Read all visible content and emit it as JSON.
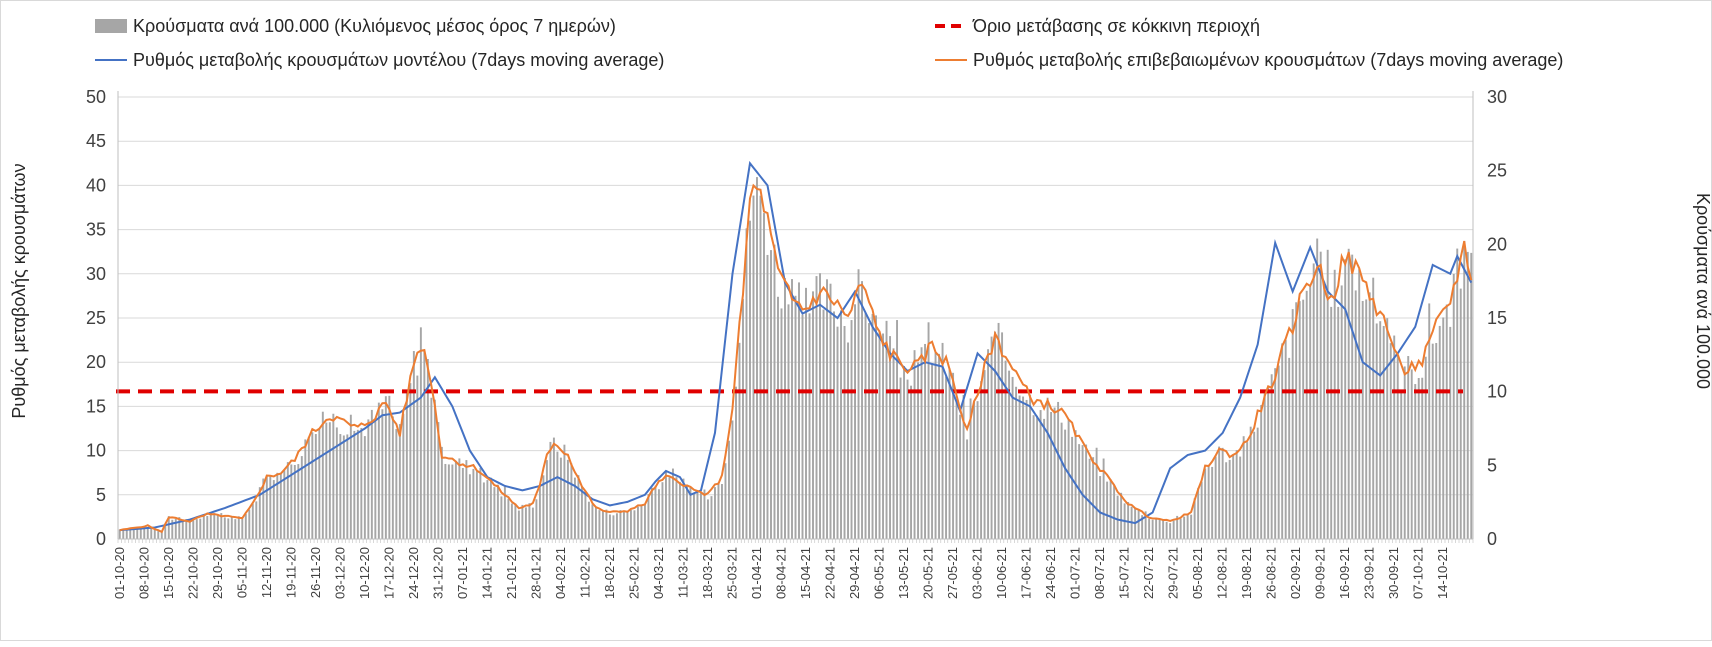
{
  "chart_data": {
    "type": "bar+line",
    "legend": {
      "bars": "Κρούσματα ανά 100.000 (Κυλιόμενος μέσος όρος 7 ημερών)",
      "threshold": "Όριο μετάβασης σε κόκκινη περιοχή",
      "model_line": "Ρυθμός μεταβολής κρουσμάτων μοντέλου (7days moving average)",
      "confirmed_line": "Ρυθμός μεταβολής επιβεβαιωμένων κρουσμάτων (7days moving average)"
    },
    "y_left": {
      "label": "Ρυθμός μεταβολής κρουσμάτων",
      "min": 0,
      "max": 50,
      "step": 5,
      "ticks": [
        "0",
        "5",
        "10",
        "15",
        "20",
        "25",
        "30",
        "35",
        "40",
        "45",
        "50"
      ]
    },
    "y_right": {
      "label": "Κρούσματα ανά 100.000",
      "min": 0,
      "max": 30,
      "step": 5,
      "ticks": [
        "0",
        "5",
        "10",
        "15",
        "20",
        "25",
        "30"
      ]
    },
    "x_start": "2020-10-01",
    "x_days": 387,
    "x_ticks": [
      "01-10-20",
      "08-10-20",
      "15-10-20",
      "22-10-20",
      "29-10-20",
      "05-11-20",
      "12-11-20",
      "19-11-20",
      "26-11-20",
      "03-12-20",
      "10-12-20",
      "17-12-20",
      "24-12-20",
      "31-12-20",
      "07-01-21",
      "14-01-21",
      "21-01-21",
      "28-01-21",
      "04-02-21",
      "11-02-21",
      "18-02-21",
      "25-02-21",
      "04-03-21",
      "11-03-21",
      "18-03-21",
      "25-03-21",
      "01-04-21",
      "08-04-21",
      "15-04-21",
      "22-04-21",
      "29-04-21",
      "06-05-21",
      "13-05-21",
      "20-05-21",
      "27-05-21",
      "03-06-21",
      "10-06-21",
      "17-06-21",
      "24-06-21",
      "01-07-21",
      "08-07-21",
      "15-07-21",
      "22-07-21",
      "29-07-21",
      "05-08-21",
      "12-08-21",
      "19-08-21",
      "26-08-21",
      "02-09-21",
      "09-09-21",
      "16-09-21",
      "23-09-21",
      "30-09-21",
      "07-10-21",
      "14-10-21"
    ],
    "threshold_value_left_axis": 16.7,
    "model_series_keypoints": {
      "day": [
        0,
        10,
        20,
        30,
        40,
        50,
        60,
        70,
        75,
        80,
        86,
        90,
        95,
        100,
        105,
        110,
        115,
        120,
        125,
        130,
        135,
        140,
        145,
        150,
        153,
        156,
        160,
        163,
        166,
        170,
        175,
        180,
        185,
        190,
        195,
        200,
        205,
        210,
        215,
        220,
        225,
        230,
        235,
        240,
        245,
        250,
        255,
        260,
        265,
        270,
        275,
        280,
        285,
        290,
        295,
        300,
        305,
        310,
        315,
        320,
        325,
        330,
        335,
        340,
        345,
        350,
        355,
        360,
        365,
        370,
        375,
        380,
        382,
        386
      ],
      "value": [
        1.0,
        1.3,
        2.2,
        3.5,
        5.0,
        7.5,
        10.0,
        12.5,
        14.0,
        14.3,
        16.0,
        18.3,
        15.0,
        10.0,
        7.0,
        6.0,
        5.5,
        6.0,
        7.0,
        6.0,
        4.5,
        3.8,
        4.2,
        5.0,
        6.5,
        7.7,
        7.0,
        5.0,
        5.5,
        12.0,
        30.0,
        42.5,
        40.0,
        29.0,
        25.5,
        26.5,
        25.0,
        28.0,
        24.0,
        21.0,
        19.0,
        20.0,
        19.5,
        14.5,
        21.0,
        19.0,
        16.0,
        15.0,
        12.0,
        8.0,
        5.0,
        3.0,
        2.2,
        1.8,
        3.0,
        8.0,
        9.5,
        10.0,
        12.0,
        16.0,
        22.0,
        33.5,
        28.0,
        33.0,
        28.0,
        26.0,
        20.0,
        18.5,
        21.0,
        24.0,
        31.0,
        30.0,
        32.0,
        29.0
      ]
    },
    "confirmed_series_keypoints": {
      "day": [
        0,
        8,
        12,
        14,
        20,
        25,
        30,
        35,
        38,
        42,
        46,
        50,
        55,
        60,
        65,
        68,
        70,
        73,
        76,
        80,
        84,
        86,
        88,
        90,
        92,
        95,
        98,
        102,
        106,
        110,
        114,
        118,
        120,
        122,
        124,
        128,
        132,
        136,
        140,
        145,
        150,
        153,
        156,
        160,
        164,
        168,
        172,
        175,
        178,
        180,
        181,
        184,
        188,
        192,
        196,
        200,
        204,
        208,
        212,
        216,
        220,
        224,
        228,
        232,
        236,
        238,
        240,
        242,
        246,
        250,
        254,
        260,
        266,
        270,
        276,
        282,
        288,
        294,
        300,
        306,
        310,
        314,
        318,
        322,
        326,
        330,
        332,
        334,
        338,
        342,
        346,
        350,
        354,
        358,
        362,
        366,
        372,
        376,
        380,
        384,
        386
      ],
      "value": [
        1.0,
        1.5,
        0.8,
        2.5,
        2.0,
        2.8,
        2.6,
        2.3,
        4.0,
        7.0,
        7.5,
        9.0,
        12.0,
        14.0,
        13.0,
        12.5,
        13.0,
        14.0,
        15.5,
        12.0,
        20.0,
        22.0,
        20.0,
        15.0,
        9.5,
        9.0,
        8.5,
        8.0,
        6.5,
        5.0,
        3.5,
        4.0,
        6.0,
        9.5,
        11.0,
        9.5,
        6.0,
        3.5,
        3.0,
        3.2,
        4.0,
        6.0,
        7.0,
        6.5,
        5.5,
        5.0,
        7.0,
        15.0,
        28.0,
        38.0,
        40.0,
        38.0,
        30.0,
        27.0,
        26.0,
        28.0,
        27.0,
        25.0,
        29.0,
        24.0,
        21.0,
        19.5,
        19.5,
        22.0,
        20.0,
        18.0,
        15.0,
        12.0,
        18.0,
        23.0,
        20.0,
        16.0,
        15.0,
        14.0,
        10.0,
        7.0,
        4.0,
        2.5,
        2.0,
        3.0,
        8.0,
        10.0,
        9.5,
        11.0,
        15.0,
        18.5,
        21.0,
        23.0,
        28.0,
        31.0,
        27.0,
        32.0,
        30.0,
        27.0,
        24.0,
        19.0,
        20.0,
        24.0,
        27.0,
        33.0,
        30.0
      ]
    },
    "bars_follow": "confirmed_series_rescaled_to_right_axis"
  },
  "colors": {
    "bars": "#a6a6a6",
    "threshold": "#e00000",
    "model_line": "#4472c4",
    "confirmed_line": "#ed7d31",
    "grid": "#d9d9d9"
  }
}
